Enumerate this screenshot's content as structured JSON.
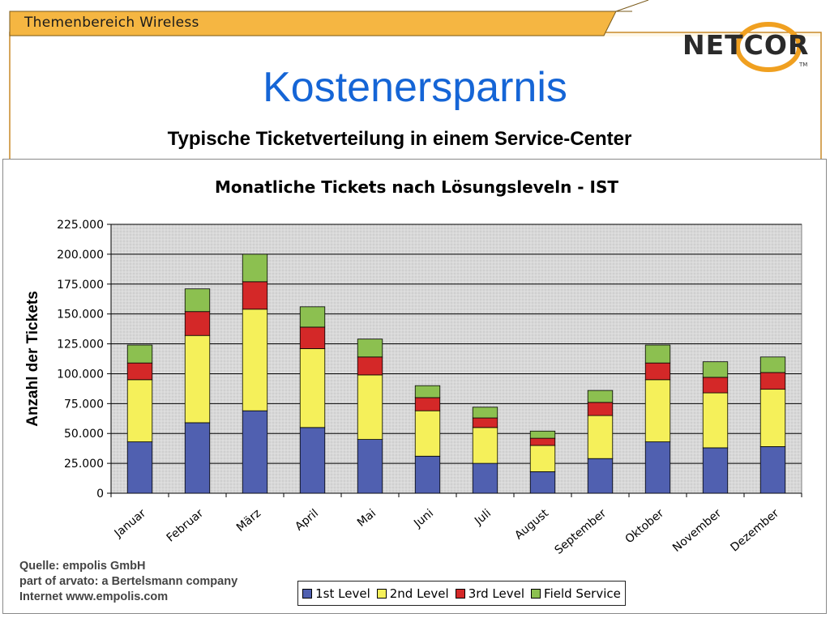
{
  "header": {
    "section_label": "Themenbereich Wireless"
  },
  "logo": {
    "text": "NETCOR",
    "tm": "TM"
  },
  "slide": {
    "title": "Kostenersparnis",
    "subtitle": "Typische Ticketverteilung in einem Service-Center"
  },
  "source": {
    "line1": "Quelle: empolis GmbH",
    "line2": "part of arvato: a Bertelsmann company",
    "line3": "Internet www.empolis.com"
  },
  "colors": {
    "header_orange": "#f5b642",
    "slide_border": "#c88a2a",
    "title_blue": "#1565d6",
    "plot_background": "#d6d6d6"
  },
  "chart_data": {
    "type": "bar",
    "stacked": true,
    "title": "Monatliche Tickets nach Lösungsleveln - IST",
    "ylabel": "Anzahl der Tickets",
    "xlabel": "",
    "ylim": [
      0,
      225000
    ],
    "yticks": [
      0,
      25000,
      50000,
      75000,
      100000,
      125000,
      150000,
      175000,
      200000,
      225000
    ],
    "ytick_labels": [
      "0",
      "25.000",
      "50.000",
      "75.000",
      "100.000",
      "125.000",
      "150.000",
      "175.000",
      "200.000",
      "225.000"
    ],
    "grid": true,
    "legend": "bottom",
    "categories": [
      "Januar",
      "Februar",
      "März",
      "April",
      "Mai",
      "Juni",
      "Juli",
      "August",
      "September",
      "Oktober",
      "November",
      "Dezember"
    ],
    "series": [
      {
        "name": "1st Level",
        "color": "#5060b0",
        "values": [
          43000,
          59000,
          69000,
          55000,
          45000,
          31000,
          25000,
          18000,
          29000,
          43000,
          38000,
          39000
        ]
      },
      {
        "name": "2nd Level",
        "color": "#f5f05a",
        "values": [
          52000,
          73000,
          85000,
          66000,
          54000,
          38000,
          30000,
          22000,
          36000,
          52000,
          46000,
          48000
        ]
      },
      {
        "name": "3rd Level",
        "color": "#d42828",
        "values": [
          14000,
          20000,
          23000,
          18000,
          15000,
          11000,
          8000,
          6000,
          11000,
          14000,
          13000,
          14000
        ]
      },
      {
        "name": "Field Service",
        "color": "#8cc050",
        "values": [
          15000,
          19000,
          23000,
          17000,
          15000,
          10000,
          9000,
          6000,
          10000,
          15000,
          13000,
          13000
        ]
      }
    ]
  }
}
